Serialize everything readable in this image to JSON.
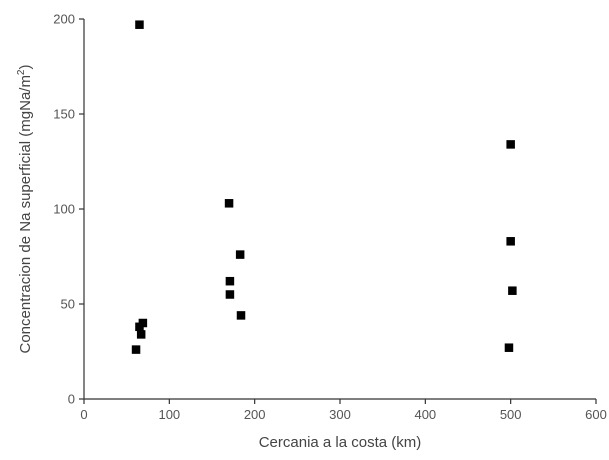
{
  "chart_data": {
    "type": "scatter",
    "title": "",
    "xlabel": "Cercania a la costa (km)",
    "ylabel_main": "Concentracion de Na superficial (mgNa/m",
    "ylabel_sup": "2",
    "ylabel_close": ")",
    "xlim": [
      0,
      600
    ],
    "ylim": [
      0,
      200
    ],
    "xticks": [
      "0",
      "100",
      "200",
      "300",
      "400",
      "500",
      "600"
    ],
    "yticks": [
      "0",
      "50",
      "100",
      "150",
      "200"
    ],
    "grid": false,
    "legend": "none",
    "marker_color": "#000000",
    "points": [
      {
        "x": 65,
        "y": 197
      },
      {
        "x": 61,
        "y": 26
      },
      {
        "x": 65,
        "y": 38
      },
      {
        "x": 67,
        "y": 34
      },
      {
        "x": 69,
        "y": 40
      },
      {
        "x": 170,
        "y": 103
      },
      {
        "x": 171,
        "y": 62
      },
      {
        "x": 171,
        "y": 55
      },
      {
        "x": 183,
        "y": 76
      },
      {
        "x": 184,
        "y": 44
      },
      {
        "x": 500,
        "y": 134
      },
      {
        "x": 500,
        "y": 83
      },
      {
        "x": 502,
        "y": 57
      },
      {
        "x": 498,
        "y": 27
      }
    ]
  }
}
